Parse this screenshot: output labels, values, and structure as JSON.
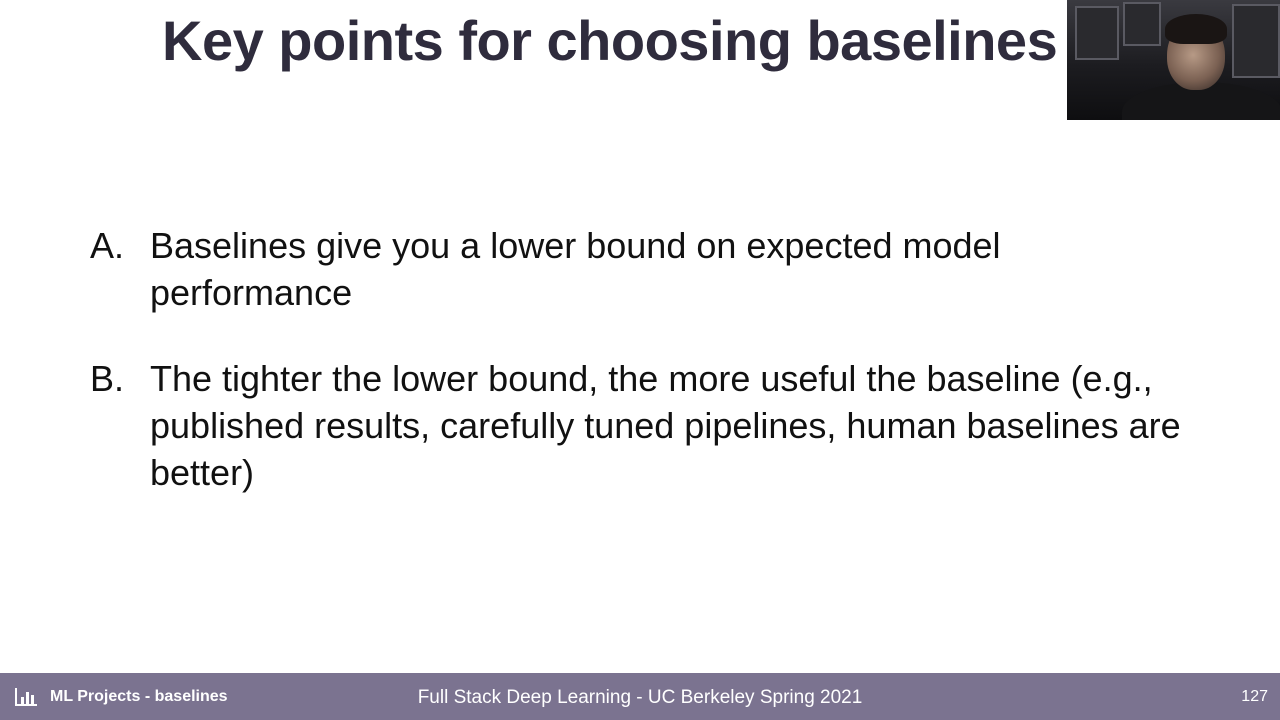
{
  "slide": {
    "title": "Key points for choosing baselines",
    "bullets": [
      {
        "marker": "A.",
        "text": "Baselines give you a lower bound on expected model performance"
      },
      {
        "marker": "B.",
        "text": "The tighter the lower bound, the more useful the baseline (e.g., published results, carefully tuned pipelines, human baselines are better)"
      }
    ]
  },
  "footer": {
    "icon": "bar-chart-icon",
    "section": "ML Projects - baselines",
    "course": "Full Stack Deep Learning - UC Berkeley Spring 2021",
    "page_number": "127"
  },
  "colors": {
    "footer_background": "#7b7390",
    "title_text": "#2f2c3d",
    "body_text": "#111111"
  }
}
